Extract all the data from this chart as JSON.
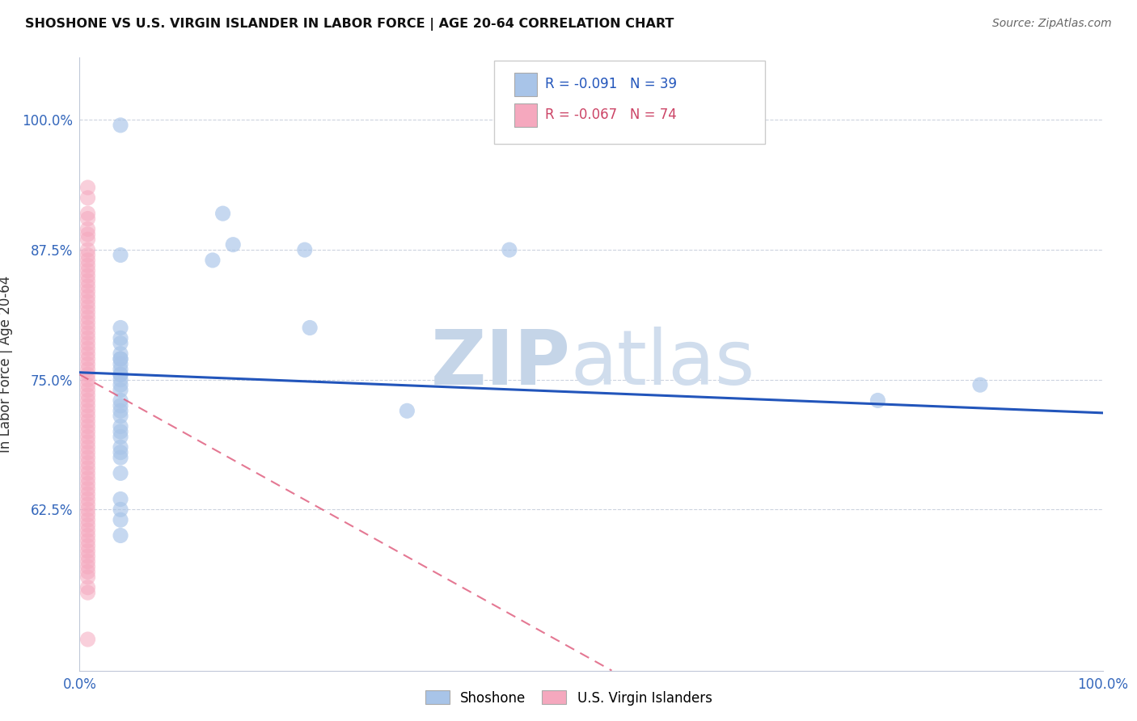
{
  "title": "SHOSHONE VS U.S. VIRGIN ISLANDER IN LABOR FORCE | AGE 20-64 CORRELATION CHART",
  "source": "Source: ZipAtlas.com",
  "ylabel": "In Labor Force | Age 20-64",
  "xlim": [
    0.0,
    1.0
  ],
  "ylim": [
    0.47,
    1.06
  ],
  "xtick_positions": [
    0.0,
    1.0
  ],
  "xtick_labels": [
    "0.0%",
    "100.0%"
  ],
  "ytick_positions": [
    0.625,
    0.75,
    0.875,
    1.0
  ],
  "ytick_labels": [
    "62.5%",
    "75.0%",
    "87.5%",
    "100.0%"
  ],
  "legend_r_blue": "-0.091",
  "legend_n_blue": "39",
  "legend_r_pink": "-0.067",
  "legend_n_pink": "74",
  "blue_color": "#a8c4e8",
  "pink_color": "#f5a8be",
  "blue_line_color": "#2255bb",
  "pink_line_color": "#e06080",
  "watermark_zip": "ZIP",
  "watermark_atlas": "atlas",
  "shoshone_x": [
    0.04,
    0.14,
    0.22,
    0.42,
    0.15,
    0.13,
    0.225,
    0.04,
    0.04,
    0.04,
    0.04,
    0.04,
    0.04,
    0.04,
    0.04,
    0.04,
    0.04,
    0.04,
    0.04,
    0.04,
    0.04,
    0.04,
    0.04,
    0.04,
    0.04,
    0.04,
    0.04,
    0.04,
    0.04,
    0.04,
    0.04,
    0.32,
    0.78,
    0.88,
    0.04,
    0.04,
    0.04,
    0.04,
    0.04
  ],
  "shoshone_y": [
    0.995,
    0.91,
    0.875,
    0.875,
    0.88,
    0.865,
    0.8,
    0.87,
    0.8,
    0.79,
    0.785,
    0.775,
    0.77,
    0.77,
    0.765,
    0.755,
    0.755,
    0.75,
    0.745,
    0.74,
    0.73,
    0.725,
    0.72,
    0.715,
    0.705,
    0.7,
    0.695,
    0.685,
    0.68,
    0.675,
    0.66,
    0.72,
    0.73,
    0.745,
    0.635,
    0.625,
    0.615,
    0.6,
    0.76
  ],
  "virgin_x": [
    0.008,
    0.008,
    0.008,
    0.008,
    0.008,
    0.008,
    0.008,
    0.008,
    0.008,
    0.008,
    0.008,
    0.008,
    0.008,
    0.008,
    0.008,
    0.008,
    0.008,
    0.008,
    0.008,
    0.008,
    0.008,
    0.008,
    0.008,
    0.008,
    0.008,
    0.008,
    0.008,
    0.008,
    0.008,
    0.008,
    0.008,
    0.008,
    0.008,
    0.008,
    0.008,
    0.008,
    0.008,
    0.008,
    0.008,
    0.008,
    0.008,
    0.008,
    0.008,
    0.008,
    0.008,
    0.008,
    0.008,
    0.008,
    0.008,
    0.008,
    0.008,
    0.008,
    0.008,
    0.008,
    0.008,
    0.008,
    0.008,
    0.008,
    0.008,
    0.008,
    0.008,
    0.008,
    0.008,
    0.008,
    0.008,
    0.008,
    0.008,
    0.008,
    0.008,
    0.008,
    0.008,
    0.008,
    0.008,
    0.008
  ],
  "virgin_y": [
    0.935,
    0.925,
    0.91,
    0.905,
    0.895,
    0.89,
    0.885,
    0.875,
    0.87,
    0.865,
    0.86,
    0.855,
    0.85,
    0.845,
    0.84,
    0.835,
    0.83,
    0.825,
    0.82,
    0.815,
    0.81,
    0.805,
    0.8,
    0.795,
    0.79,
    0.785,
    0.78,
    0.775,
    0.77,
    0.765,
    0.76,
    0.755,
    0.75,
    0.745,
    0.74,
    0.735,
    0.73,
    0.725,
    0.72,
    0.715,
    0.71,
    0.705,
    0.7,
    0.695,
    0.69,
    0.685,
    0.68,
    0.675,
    0.67,
    0.665,
    0.66,
    0.655,
    0.65,
    0.645,
    0.64,
    0.635,
    0.63,
    0.625,
    0.62,
    0.615,
    0.61,
    0.605,
    0.6,
    0.595,
    0.59,
    0.585,
    0.58,
    0.575,
    0.57,
    0.565,
    0.56,
    0.55,
    0.545,
    0.5
  ],
  "blue_line_x0": 0.0,
  "blue_line_y0": 0.757,
  "blue_line_x1": 1.0,
  "blue_line_y1": 0.718,
  "pink_line_x0": 0.0,
  "pink_line_y0": 0.755,
  "pink_line_x1": 0.52,
  "pink_line_y1": 0.47
}
